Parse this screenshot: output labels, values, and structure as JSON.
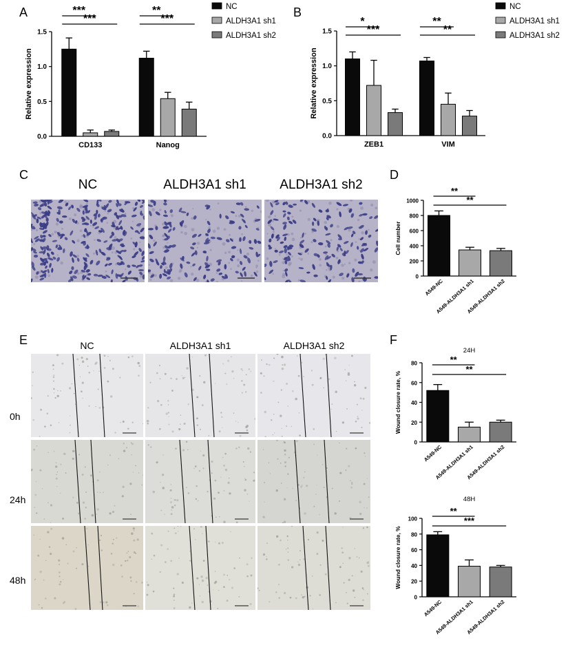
{
  "panels": {
    "A": "A",
    "B": "B",
    "C": "C",
    "D": "D",
    "E": "E",
    "F": "F"
  },
  "colors": {
    "nc": "#0a0a0a",
    "sh1": "#a8a8a8",
    "sh2": "#7a7a7a",
    "stain_bg": "#b6b2c8",
    "stain_cell": "#3b3d86",
    "scratch_bg": "#e3e3e3"
  },
  "transwell": {
    "titles": [
      "NC",
      "ALDH3A1 sh1",
      "ALDH3A1 sh2"
    ]
  },
  "scratch": {
    "col_titles": [
      "NC",
      "ALDH3A1 sh1",
      "ALDH3A1 sh2"
    ],
    "row_labels": [
      "0h",
      "24h",
      "48h"
    ]
  },
  "chart_data": [
    {
      "id": "A",
      "type": "bar",
      "categories": [
        "CD133",
        "Nanog"
      ],
      "series": [
        {
          "name": "NC",
          "values": [
            1.25,
            1.12
          ],
          "errors": [
            0.16,
            0.1
          ]
        },
        {
          "name": "ALDH3A1 sh1",
          "values": [
            0.05,
            0.54
          ],
          "errors": [
            0.04,
            0.09
          ]
        },
        {
          "name": "ALDH3A1 sh2",
          "values": [
            0.07,
            0.39
          ],
          "errors": [
            0.02,
            0.1
          ]
        }
      ],
      "ylabel": "Relative expression",
      "ylim": [
        0,
        1.5
      ],
      "yticks": [
        "0.0",
        "0.5",
        "1.0",
        "1.5"
      ],
      "legend": "right",
      "annotations": [
        {
          "category": 0,
          "from": 0,
          "to": 1,
          "text": "***",
          "level": 1
        },
        {
          "category": 0,
          "from": 0,
          "to": 2,
          "text": "***",
          "level": 2
        },
        {
          "category": 1,
          "from": 0,
          "to": 1,
          "text": "**",
          "level": 1
        },
        {
          "category": 1,
          "from": 0,
          "to": 2,
          "text": "***",
          "level": 2
        }
      ]
    },
    {
      "id": "B",
      "type": "bar",
      "categories": [
        "ZEB1",
        "VIM"
      ],
      "series": [
        {
          "name": "NC",
          "values": [
            1.1,
            1.07
          ],
          "errors": [
            0.1,
            0.05
          ]
        },
        {
          "name": "ALDH3A1 sh1",
          "values": [
            0.72,
            0.45
          ],
          "errors": [
            0.36,
            0.16
          ]
        },
        {
          "name": "ALDH3A1 sh2",
          "values": [
            0.33,
            0.28
          ],
          "errors": [
            0.05,
            0.08
          ]
        }
      ],
      "ylabel": "Relative expression",
      "ylim": [
        0,
        1.5
      ],
      "yticks": [
        "0.0",
        "0.5",
        "1.0",
        "1.5"
      ],
      "legend": "right",
      "annotations": [
        {
          "category": 0,
          "from": 0,
          "to": 1,
          "text": "*",
          "level": 1
        },
        {
          "category": 0,
          "from": 0,
          "to": 2,
          "text": "***",
          "level": 2
        },
        {
          "category": 1,
          "from": 0,
          "to": 1,
          "text": "**",
          "level": 1
        },
        {
          "category": 1,
          "from": 0,
          "to": 2,
          "text": "**",
          "level": 2
        }
      ]
    },
    {
      "id": "D",
      "type": "bar",
      "categories": [
        "A549-NC",
        "A549-ALDH3A1 sh1",
        "A549-ALDH3A1 sh2"
      ],
      "values": [
        800,
        345,
        335
      ],
      "errors": [
        60,
        35,
        30
      ],
      "ylabel": "Cell number",
      "ylim": [
        0,
        1000
      ],
      "yticks": [
        "0",
        "200",
        "400",
        "600",
        "800",
        "1000"
      ],
      "annotations": [
        {
          "from": 0,
          "to": 1,
          "text": "**",
          "level": 1
        },
        {
          "from": 0,
          "to": 2,
          "text": "**",
          "level": 2
        }
      ]
    },
    {
      "id": "F1",
      "type": "bar",
      "title": "24H",
      "categories": [
        "A549-NC",
        "A549-ALDH3A1 sh1",
        "A549-ALDH3A1 sh2"
      ],
      "values": [
        52,
        15,
        20
      ],
      "errors": [
        6,
        5,
        2
      ],
      "ylabel": "Wound closure rate, %",
      "ylim": [
        0,
        80
      ],
      "yticks": [
        "0",
        "20",
        "40",
        "60",
        "80"
      ],
      "annotations": [
        {
          "from": 0,
          "to": 1,
          "text": "**",
          "level": 1
        },
        {
          "from": 0,
          "to": 2,
          "text": "**",
          "level": 2
        }
      ]
    },
    {
      "id": "F2",
      "type": "bar",
      "title": "48H",
      "categories": [
        "A549-NC",
        "A549-ALDH3A1 sh1",
        "A549-ALDH3A1 sh2"
      ],
      "values": [
        79,
        39,
        38
      ],
      "errors": [
        4,
        8,
        2
      ],
      "ylabel": "Wound closure rate, %",
      "ylim": [
        0,
        100
      ],
      "yticks": [
        "0",
        "20",
        "40",
        "60",
        "80",
        "100"
      ],
      "annotations": [
        {
          "from": 0,
          "to": 1,
          "text": "**",
          "level": 1
        },
        {
          "from": 0,
          "to": 2,
          "text": "***",
          "level": 2
        }
      ]
    }
  ]
}
